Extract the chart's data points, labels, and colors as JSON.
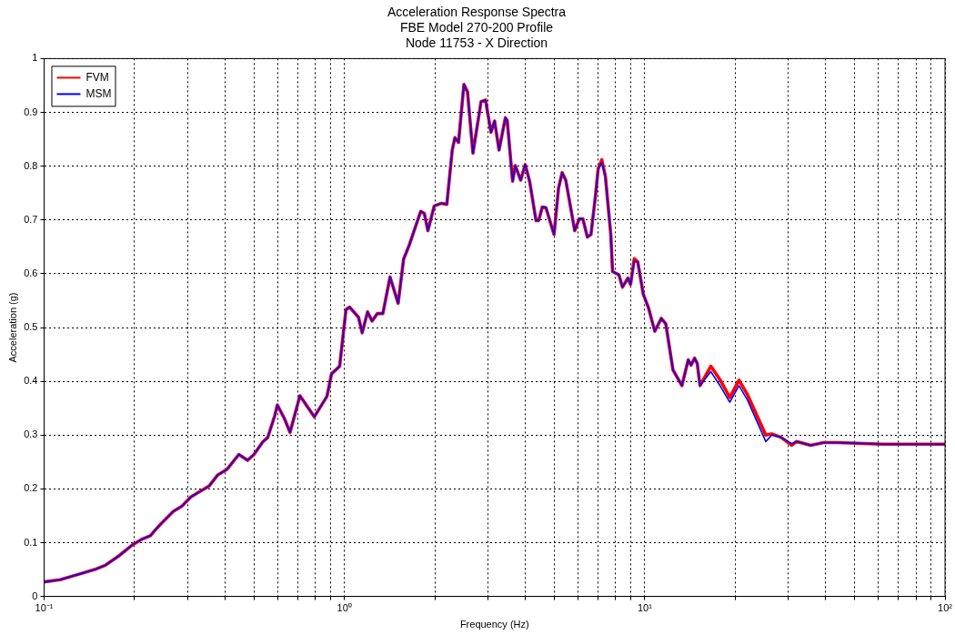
{
  "chart_data": {
    "type": "line",
    "title": "Acceleration Response Spectra\nFBE Model 270-200 Profile\nNode 11753 - X Direction",
    "xlabel": "Frequency (Hz)",
    "ylabel": "Acceleration (g)",
    "log": "x",
    "grid": true,
    "legend": "top left",
    "line_style": "solid",
    "marker": "none",
    "xlim": [
      0.1,
      100
    ],
    "ylim": [
      0,
      1
    ],
    "xticks": [
      {
        "value": 0.1,
        "label": "10⁻¹"
      },
      {
        "value": 0.2,
        "label": null
      },
      {
        "value": 0.3,
        "label": null
      },
      {
        "value": 0.4,
        "label": null
      },
      {
        "value": 0.5,
        "label": null
      },
      {
        "value": 0.6,
        "label": null
      },
      {
        "value": 0.7,
        "label": null
      },
      {
        "value": 0.8,
        "label": null
      },
      {
        "value": 0.9,
        "label": null
      },
      {
        "value": 1,
        "label": "10⁰"
      },
      {
        "value": 2,
        "label": null
      },
      {
        "value": 3,
        "label": null
      },
      {
        "value": 4,
        "label": null
      },
      {
        "value": 5,
        "label": null
      },
      {
        "value": 6,
        "label": null
      },
      {
        "value": 7,
        "label": null
      },
      {
        "value": 8,
        "label": null
      },
      {
        "value": 9,
        "label": null
      },
      {
        "value": 10,
        "label": "10¹"
      },
      {
        "value": 20,
        "label": null
      },
      {
        "value": 30,
        "label": null
      },
      {
        "value": 40,
        "label": null
      },
      {
        "value": 50,
        "label": null
      },
      {
        "value": 60,
        "label": null
      },
      {
        "value": 70,
        "label": null
      },
      {
        "value": 80,
        "label": null
      },
      {
        "value": 90,
        "label": null
      },
      {
        "value": 100,
        "label": "10²"
      }
    ],
    "yticks": [
      0,
      0.1,
      0.2,
      0.3,
      0.4,
      0.5,
      0.6,
      0.7,
      0.8,
      0.9,
      1
    ],
    "x": [
      0.1,
      0.113,
      0.13,
      0.149,
      0.16,
      0.177,
      0.197,
      0.211,
      0.226,
      0.234,
      0.245,
      0.269,
      0.288,
      0.308,
      0.33,
      0.354,
      0.379,
      0.406,
      0.445,
      0.476,
      0.5,
      0.536,
      0.555,
      0.586,
      0.598,
      0.632,
      0.659,
      0.711,
      0.794,
      0.875,
      0.906,
      0.964,
      1.012,
      1.04,
      1.114,
      1.146,
      1.194,
      1.236,
      1.288,
      1.343,
      1.419,
      1.51,
      1.574,
      1.641,
      1.795,
      1.845,
      1.897,
      1.991,
      2.104,
      2.193,
      2.286,
      2.333,
      2.399,
      2.5,
      2.57,
      2.679,
      2.851,
      2.951,
      3.076,
      3.162,
      3.273,
      3.436,
      3.484,
      3.631,
      3.707,
      3.864,
      4,
      4.14,
      4.345,
      4.436,
      4.56,
      4.688,
      4.989,
      5.164,
      5.309,
      5.458,
      5.848,
      6.053,
      6.223,
      6.442,
      6.622,
      6.855,
      6.998,
      7.194,
      7.396,
      7.709,
      7.816,
      8.204,
      8.433,
      8.79,
      8.97,
      9.23,
      9.48,
      9.89,
      10.3,
      10.8,
      11.35,
      11.75,
      12.42,
      13.3,
      13.96,
      14.26,
      14.66,
      14.96,
      15.28,
      16.6,
      17.9,
      19.2,
      20.6,
      22,
      25.3,
      26.5,
      28.4,
      30.9,
      32,
      35.7,
      39.4,
      44,
      62.1,
      100
    ],
    "series": [
      {
        "name": "FVM",
        "color": "#ff0000",
        "values": [
          0.027,
          0.031,
          0.041,
          0.051,
          0.058,
          0.075,
          0.096,
          0.106,
          0.113,
          0.123,
          0.135,
          0.158,
          0.168,
          0.185,
          0.195,
          0.205,
          0.226,
          0.236,
          0.264,
          0.253,
          0.264,
          0.288,
          0.295,
          0.336,
          0.356,
          0.33,
          0.305,
          0.373,
          0.334,
          0.372,
          0.414,
          0.428,
          0.533,
          0.538,
          0.519,
          0.49,
          0.529,
          0.512,
          0.526,
          0.526,
          0.594,
          0.545,
          0.627,
          0.652,
          0.716,
          0.712,
          0.68,
          0.726,
          0.731,
          0.729,
          0.83,
          0.853,
          0.844,
          0.952,
          0.938,
          0.824,
          0.92,
          0.923,
          0.863,
          0.884,
          0.83,
          0.89,
          0.885,
          0.772,
          0.801,
          0.774,
          0.803,
          0.771,
          0.699,
          0.699,
          0.724,
          0.723,
          0.673,
          0.759,
          0.788,
          0.774,
          0.68,
          0.702,
          0.702,
          0.668,
          0.673,
          0.745,
          0.795,
          0.812,
          0.781,
          0.673,
          0.604,
          0.598,
          0.575,
          0.592,
          0.58,
          0.628,
          0.622,
          0.562,
          0.536,
          0.493,
          0.517,
          0.507,
          0.421,
          0.392,
          0.44,
          0.43,
          0.443,
          0.433,
          0.392,
          0.428,
          0.401,
          0.37,
          0.402,
          0.375,
          0.3,
          0.302,
          0.296,
          0.281,
          0.288,
          0.281,
          0.286,
          0.286,
          0.283,
          0.283
        ]
      },
      {
        "name": "MSM",
        "color": "#0000ff",
        "values": [
          0.027,
          0.031,
          0.041,
          0.051,
          0.058,
          0.075,
          0.096,
          0.106,
          0.113,
          0.123,
          0.135,
          0.158,
          0.168,
          0.185,
          0.195,
          0.205,
          0.226,
          0.236,
          0.264,
          0.253,
          0.264,
          0.288,
          0.295,
          0.336,
          0.356,
          0.33,
          0.305,
          0.373,
          0.334,
          0.372,
          0.414,
          0.428,
          0.533,
          0.538,
          0.519,
          0.49,
          0.529,
          0.512,
          0.526,
          0.526,
          0.594,
          0.545,
          0.627,
          0.652,
          0.716,
          0.712,
          0.68,
          0.726,
          0.731,
          0.729,
          0.83,
          0.853,
          0.844,
          0.952,
          0.938,
          0.824,
          0.92,
          0.923,
          0.863,
          0.884,
          0.83,
          0.89,
          0.885,
          0.772,
          0.801,
          0.774,
          0.803,
          0.771,
          0.699,
          0.699,
          0.724,
          0.723,
          0.673,
          0.759,
          0.788,
          0.774,
          0.68,
          0.702,
          0.702,
          0.668,
          0.673,
          0.745,
          0.795,
          0.807,
          0.781,
          0.673,
          0.604,
          0.598,
          0.575,
          0.592,
          0.58,
          0.623,
          0.622,
          0.562,
          0.536,
          0.493,
          0.517,
          0.507,
          0.421,
          0.392,
          0.44,
          0.43,
          0.443,
          0.433,
          0.392,
          0.418,
          0.39,
          0.361,
          0.392,
          0.365,
          0.288,
          0.3,
          0.296,
          0.284,
          0.288,
          0.281,
          0.286,
          0.286,
          0.283,
          0.283
        ]
      }
    ]
  }
}
